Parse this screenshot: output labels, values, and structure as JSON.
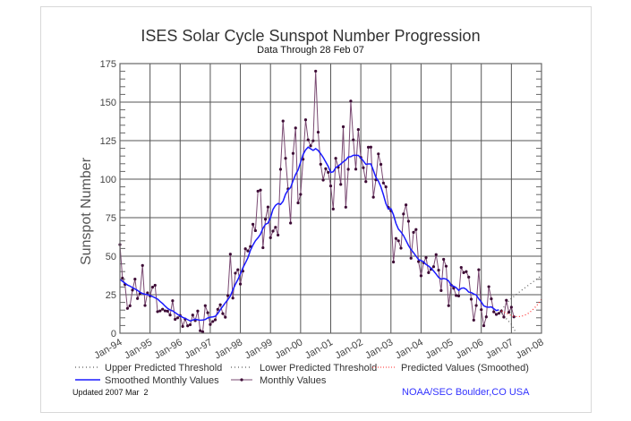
{
  "chart_data": {
    "type": "line",
    "title": "ISES Solar Cycle Sunspot Number Progression",
    "subtitle": "Data Through 28 Feb 07",
    "ylabel": "Sunspot Number",
    "xlabel": "",
    "ylim": [
      0,
      175
    ],
    "xlim": [
      "1994-01",
      "2008-01"
    ],
    "grid": true,
    "x_tick_labels": [
      "Jan-94",
      "Jan-95",
      "Jan-96",
      "Jan-97",
      "Jan-98",
      "Jan-99",
      "Jan-00",
      "Jan-01",
      "Jan-02",
      "Jan-03",
      "Jan-04",
      "Jan-05",
      "Jan-06",
      "Jan-07",
      "Jan-08"
    ],
    "y_ticks": [
      0,
      25,
      50,
      75,
      100,
      125,
      150,
      175
    ],
    "legend_placement": "bottom",
    "series": [
      {
        "name": "Monthly Values",
        "color": "#7a4a72",
        "marker_color": "#3d0b35",
        "start": "1994-01",
        "values": [
          57.5,
          35.8,
          31.7,
          16.1,
          17.8,
          28.0,
          35.1,
          22.5,
          25.7,
          44.0,
          18.0,
          26.2,
          24.2,
          29.9,
          31.1,
          14.0,
          14.5,
          15.6,
          14.5,
          14.3,
          11.8,
          21.1,
          9.0,
          10.0,
          11.5,
          4.4,
          9.2,
          4.8,
          5.5,
          11.8,
          8.2,
          14.4,
          1.6,
          0.9,
          17.9,
          13.3,
          5.7,
          7.6,
          8.7,
          15.5,
          18.5,
          12.7,
          10.4,
          24.4,
          51.3,
          22.8,
          39.0,
          41.2,
          31.9,
          40.3,
          54.8,
          53.4,
          56.3,
          70.7,
          66.6,
          92.2,
          92.9,
          55.5,
          74.0,
          81.9,
          62.0,
          66.3,
          68.8,
          63.7,
          106.4,
          137.7,
          113.5,
          93.7,
          71.5,
          116.7,
          133.2,
          84.6,
          90.1,
          112.9,
          138.5,
          125.5,
          121.6,
          124.9,
          170.1,
          130.5,
          109.7,
          99.4,
          106.8,
          104.4,
          95.6,
          80.6,
          113.5,
          107.7,
          96.6,
          134.0,
          81.8,
          106.4,
          150.7,
          125.5,
          106.5,
          132.2,
          114.1,
          107.4,
          98.4,
          120.7,
          120.8,
          88.3,
          99.6,
          116.4,
          109.6,
          97.5,
          95.0,
          81.6,
          79.5,
          46.2,
          61.5,
          60.0,
          55.2,
          77.4,
          83.3,
          72.7,
          48.7,
          65.5,
          67.3,
          46.5,
          37.3,
          45.8,
          49.1,
          39.3,
          41.5,
          43.2,
          51.0,
          40.9,
          27.7,
          48.0,
          43.5,
          17.9,
          31.3,
          29.2,
          24.5,
          24.2,
          42.7,
          39.3,
          40.0,
          36.4,
          22.1,
          8.5,
          18.0,
          41.2,
          15.3,
          4.9,
          10.6,
          30.2,
          22.3,
          13.9,
          12.2,
          12.9,
          14.4,
          10.5,
          21.4,
          13.6,
          16.9,
          10.6
        ]
      },
      {
        "name": "Smoothed Monthly Values",
        "color": "#1a1aff",
        "start": "1994-01",
        "values": [
          34.9,
          33.7,
          32.5,
          31.3,
          30.6,
          29.6,
          28.7,
          27.8,
          26.6,
          25.8,
          25.3,
          25.1,
          24.4,
          23.8,
          23.0,
          22.2,
          20.6,
          19.3,
          17.6,
          16.1,
          15.1,
          14.5,
          13.4,
          12.2,
          11.3,
          10.3,
          9.6,
          8.8,
          8.0,
          8.5,
          9.1,
          8.7,
          8.4,
          8.6,
          8.9,
          9.9,
          10.4,
          10.6,
          11.0,
          12.8,
          15.3,
          17.5,
          19.7,
          21.8,
          24.2,
          28.1,
          31.7,
          34.8,
          38.5,
          42.5,
          45.6,
          49.0,
          53.8,
          57.2,
          60.0,
          61.9,
          64.2,
          68.1,
          70.7,
          71.5,
          75.0,
          80.4,
          83.0,
          84.2,
          83.6,
          85.6,
          90.2,
          93.0,
          94.5,
          99.0,
          103.0,
          106.0,
          111.0,
          116.0,
          119.0,
          120.8,
          119.7,
          118.7,
          119.8,
          118.6,
          116.5,
          114.1,
          111.2,
          108.3,
          104.4,
          104.8,
          107.5,
          108.6,
          109.8,
          111.3,
          112.4,
          114.4,
          114.6,
          115.5,
          115.5,
          115.4,
          113.8,
          111.8,
          109.6,
          109.9,
          109.9,
          105.7,
          101.2,
          98.7,
          95.0,
          89.9,
          84.1,
          80.5,
          80.8,
          76.9,
          71.3,
          67.5,
          65.7,
          63.4,
          60.2,
          56.9,
          54.3,
          52.3,
          50.0,
          47.8,
          47.2,
          46.3,
          44.6,
          43.6,
          42.2,
          40.4,
          38.4,
          36.2,
          35.1,
          35.5,
          35.1,
          33.9,
          31.2,
          30.5,
          29.6,
          27.8,
          29.1,
          29.4,
          28.5,
          26.7,
          26.4,
          25.5,
          24.8,
          22.3,
          20.3,
          17.8,
          17.1,
          16.9,
          17.1,
          15.9,
          14.7,
          15.2
        ]
      },
      {
        "name": "Predicted Values (Smoothed)",
        "color": "#ff2a2a",
        "start": "2006-09",
        "values": [
          14.5,
          13.8,
          13.0,
          12.2,
          11.5,
          11.0,
          10.8,
          10.8,
          11.0,
          11.5,
          12.2,
          13.2,
          14.5,
          16.0,
          17.8,
          19.8,
          22.0
        ]
      },
      {
        "name": "Upper Predicted Threshold",
        "color": "#555555",
        "start": "2006-09",
        "values": [
          15,
          17,
          19,
          21,
          22.6,
          23.9,
          25.2,
          26.5,
          27.8,
          29.0,
          30.2,
          31.4,
          32.6,
          33.8,
          35.0,
          36.2,
          37.4
        ]
      },
      {
        "name": "Lower Predicted Threshold",
        "color": "#555555",
        "start": "2006-09",
        "values": [
          13,
          11.2,
          9.4,
          7.6,
          5.8,
          2.8,
          0
        ]
      }
    ]
  },
  "legend": {
    "upper": "Upper Predicted Threshold",
    "lower": "Lower Predicted Threshold",
    "predicted": "Predicted Values (Smoothed)",
    "smoothed": "Smoothed Monthly Values",
    "monthly": "Monthly Values"
  },
  "footer": {
    "updated": "Updated 2007 Mar  2",
    "source": "NOAA/SEC Boulder,CO USA"
  }
}
